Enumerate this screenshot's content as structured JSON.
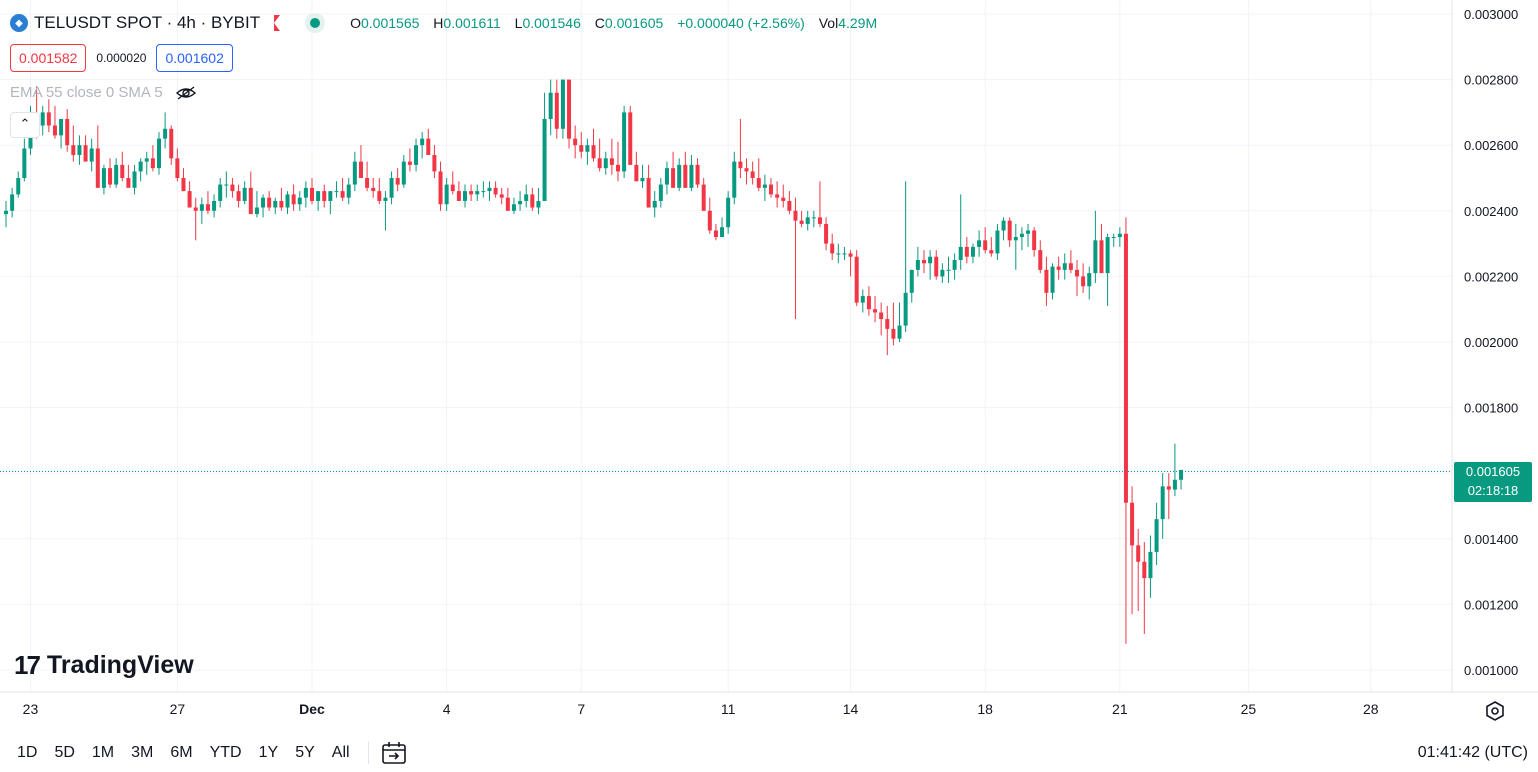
{
  "header": {
    "symbol_title": "TELUSDT SPOT · 4h · BYBIT",
    "ohlc": {
      "o_label": "O",
      "o_value": "0.001565",
      "h_label": "H",
      "h_value": "0.001611",
      "l_label": "L",
      "l_value": "0.001546",
      "c_label": "C",
      "c_value": "0.001605",
      "change": "+0.000040 (+2.56%)",
      "vol_label": "Vol",
      "vol_value": "4.29M"
    },
    "sell_price": "0.001582",
    "spread": "0.000020",
    "buy_price": "0.001602",
    "indicator_label": "EMA 55 close 0 SMA 5"
  },
  "brand": "TradingView",
  "last_price_tag": {
    "price": "0.001605",
    "countdown": "02:18:18"
  },
  "colors": {
    "up": "#089981",
    "down": "#f23645",
    "grid": "#f0f3fa"
  },
  "time_ranges": [
    "1D",
    "5D",
    "1M",
    "3M",
    "6M",
    "YTD",
    "1Y",
    "5Y",
    "All"
  ],
  "clock": "01:41:42 (UTC)",
  "chart_data": {
    "type": "candlestick",
    "ylim": [
      0.00095,
      0.00302
    ],
    "y_ticks": [
      "0.003000",
      "0.002800",
      "0.002600",
      "0.002400",
      "0.002200",
      "0.002000",
      "0.001800",
      "0.001600",
      "0.001400",
      "0.001200",
      "0.001000"
    ],
    "y_tick_values": [
      0.003,
      0.0028,
      0.0026,
      0.0024,
      0.0022,
      0.002,
      0.0018,
      0.0016,
      0.0014,
      0.0012,
      0.001
    ],
    "x_labels": [
      "23",
      "27",
      "Dec",
      "4",
      "7",
      "11",
      "14",
      "18",
      "21",
      "25",
      "28"
    ],
    "x_label_index": [
      4,
      28,
      50,
      72,
      94,
      118,
      138,
      160,
      182,
      203,
      223
    ],
    "last_price": 0.001605,
    "candles": [
      [
        0.00239,
        0.00243,
        0.00235,
        0.0024
      ],
      [
        0.0024,
        0.00247,
        0.00238,
        0.00245
      ],
      [
        0.00245,
        0.00252,
        0.00244,
        0.0025
      ],
      [
        0.0025,
        0.00262,
        0.00249,
        0.00259
      ],
      [
        0.00259,
        0.00272,
        0.00257,
        0.00268
      ],
      [
        0.00268,
        0.00278,
        0.00262,
        0.00266
      ],
      [
        0.00266,
        0.00272,
        0.00263,
        0.0027
      ],
      [
        0.0027,
        0.00274,
        0.00264,
        0.00266
      ],
      [
        0.00266,
        0.00272,
        0.00262,
        0.00263
      ],
      [
        0.00263,
        0.00268,
        0.00259,
        0.00268
      ],
      [
        0.00268,
        0.00271,
        0.00258,
        0.0026
      ],
      [
        0.0026,
        0.00266,
        0.00255,
        0.00257
      ],
      [
        0.00257,
        0.00263,
        0.00254,
        0.0026
      ],
      [
        0.0026,
        0.00263,
        0.00256,
        0.00255
      ],
      [
        0.00255,
        0.00262,
        0.00252,
        0.00259
      ],
      [
        0.00259,
        0.00266,
        0.00247,
        0.00247
      ],
      [
        0.00247,
        0.00254,
        0.00245,
        0.00253
      ],
      [
        0.00253,
        0.00256,
        0.00247,
        0.00248
      ],
      [
        0.00248,
        0.00256,
        0.00247,
        0.00254
      ],
      [
        0.00254,
        0.00258,
        0.00249,
        0.0025
      ],
      [
        0.0025,
        0.00254,
        0.00248,
        0.00247
      ],
      [
        0.00247,
        0.00254,
        0.00245,
        0.00252
      ],
      [
        0.00252,
        0.00256,
        0.00249,
        0.00255
      ],
      [
        0.00255,
        0.00258,
        0.00251,
        0.00256
      ],
      [
        0.00256,
        0.0026,
        0.00252,
        0.00253
      ],
      [
        0.00253,
        0.00264,
        0.00251,
        0.00262
      ],
      [
        0.00262,
        0.0027,
        0.00259,
        0.00265
      ],
      [
        0.00265,
        0.00266,
        0.00254,
        0.00256
      ],
      [
        0.00256,
        0.00259,
        0.00249,
        0.0025
      ],
      [
        0.0025,
        0.00253,
        0.00246,
        0.00246
      ],
      [
        0.00246,
        0.00249,
        0.00241,
        0.00241
      ],
      [
        0.00241,
        0.00244,
        0.00231,
        0.0024
      ],
      [
        0.0024,
        0.00244,
        0.00236,
        0.00242
      ],
      [
        0.00242,
        0.00246,
        0.00239,
        0.0024
      ],
      [
        0.0024,
        0.00245,
        0.00238,
        0.00243
      ],
      [
        0.00243,
        0.0025,
        0.00241,
        0.00248
      ],
      [
        0.00248,
        0.00252,
        0.00244,
        0.00248
      ],
      [
        0.00248,
        0.0025,
        0.00244,
        0.00246
      ],
      [
        0.00246,
        0.00248,
        0.00241,
        0.00243
      ],
      [
        0.00243,
        0.00249,
        0.00242,
        0.00247
      ],
      [
        0.00247,
        0.00252,
        0.00239,
        0.00239
      ],
      [
        0.00239,
        0.00246,
        0.00238,
        0.00241
      ],
      [
        0.00241,
        0.00245,
        0.00238,
        0.00244
      ],
      [
        0.00244,
        0.00246,
        0.0024,
        0.00241
      ],
      [
        0.00241,
        0.00244,
        0.00239,
        0.00243
      ],
      [
        0.00243,
        0.00247,
        0.0024,
        0.00241
      ],
      [
        0.00241,
        0.00246,
        0.00239,
        0.00245
      ],
      [
        0.00245,
        0.00248,
        0.0024,
        0.00242
      ],
      [
        0.00242,
        0.00246,
        0.0024,
        0.00244
      ],
      [
        0.00244,
        0.00249,
        0.00241,
        0.00247
      ],
      [
        0.00247,
        0.0025,
        0.00242,
        0.00243
      ],
      [
        0.00243,
        0.00246,
        0.0024,
        0.00246
      ],
      [
        0.00246,
        0.00248,
        0.00241,
        0.00243
      ],
      [
        0.00243,
        0.00246,
        0.00239,
        0.00246
      ],
      [
        0.00246,
        0.00249,
        0.00244,
        0.00246
      ],
      [
        0.00246,
        0.0025,
        0.00243,
        0.00244
      ],
      [
        0.00244,
        0.0025,
        0.00242,
        0.00248
      ],
      [
        0.00248,
        0.00258,
        0.00246,
        0.00255
      ],
      [
        0.00255,
        0.0026,
        0.0025,
        0.0025
      ],
      [
        0.0025,
        0.00255,
        0.00246,
        0.00247
      ],
      [
        0.00247,
        0.0025,
        0.00244,
        0.00246
      ],
      [
        0.00246,
        0.0025,
        0.00242,
        0.00243
      ],
      [
        0.00243,
        0.00246,
        0.00234,
        0.00244
      ],
      [
        0.00244,
        0.00252,
        0.00242,
        0.0025
      ],
      [
        0.0025,
        0.00253,
        0.00246,
        0.00248
      ],
      [
        0.00248,
        0.00257,
        0.00247,
        0.00255
      ],
      [
        0.00255,
        0.00259,
        0.00252,
        0.00254
      ],
      [
        0.00254,
        0.00262,
        0.00252,
        0.0026
      ],
      [
        0.0026,
        0.00264,
        0.00256,
        0.00262
      ],
      [
        0.00262,
        0.00265,
        0.00257,
        0.00257
      ],
      [
        0.00257,
        0.0026,
        0.0025,
        0.00252
      ],
      [
        0.00252,
        0.00255,
        0.0024,
        0.00242
      ],
      [
        0.00242,
        0.0025,
        0.0024,
        0.00248
      ],
      [
        0.00248,
        0.00252,
        0.00245,
        0.00246
      ],
      [
        0.00246,
        0.00249,
        0.00243,
        0.00243
      ],
      [
        0.00243,
        0.00248,
        0.00241,
        0.00246
      ],
      [
        0.00246,
        0.00248,
        0.00243,
        0.00245
      ],
      [
        0.00245,
        0.00248,
        0.00243,
        0.00246
      ],
      [
        0.00246,
        0.00249,
        0.00244,
        0.00246
      ],
      [
        0.00246,
        0.00249,
        0.00243,
        0.00247
      ],
      [
        0.00247,
        0.00249,
        0.00244,
        0.00245
      ],
      [
        0.00245,
        0.00247,
        0.00242,
        0.00244
      ],
      [
        0.00244,
        0.00247,
        0.0024,
        0.0024
      ],
      [
        0.0024,
        0.00244,
        0.00239,
        0.00242
      ],
      [
        0.00242,
        0.00246,
        0.0024,
        0.00243
      ],
      [
        0.00243,
        0.00248,
        0.00241,
        0.00245
      ],
      [
        0.00245,
        0.00247,
        0.0024,
        0.00241
      ],
      [
        0.00241,
        0.00247,
        0.00239,
        0.00243
      ],
      [
        0.00243,
        0.00276,
        0.00243,
        0.00268
      ],
      [
        0.00268,
        0.0028,
        0.00263,
        0.00276
      ],
      [
        0.00276,
        0.0028,
        0.00262,
        0.00265
      ],
      [
        0.00265,
        0.0028,
        0.00262,
        0.0028
      ],
      [
        0.0028,
        0.0028,
        0.00259,
        0.00262
      ],
      [
        0.00262,
        0.00266,
        0.00256,
        0.0026
      ],
      [
        0.0026,
        0.00264,
        0.00256,
        0.00258
      ],
      [
        0.00258,
        0.00262,
        0.00254,
        0.0026
      ],
      [
        0.0026,
        0.00265,
        0.00255,
        0.00256
      ],
      [
        0.00256,
        0.00262,
        0.00252,
        0.00253
      ],
      [
        0.00253,
        0.00258,
        0.00251,
        0.00256
      ],
      [
        0.00256,
        0.00262,
        0.00251,
        0.00254
      ],
      [
        0.00254,
        0.00261,
        0.00249,
        0.00252
      ],
      [
        0.00252,
        0.00272,
        0.0025,
        0.0027
      ],
      [
        0.0027,
        0.00272,
        0.00254,
        0.00254
      ],
      [
        0.00254,
        0.00258,
        0.00249,
        0.00249
      ],
      [
        0.00249,
        0.00254,
        0.00247,
        0.0025
      ],
      [
        0.0025,
        0.00254,
        0.00241,
        0.00241
      ],
      [
        0.00241,
        0.00246,
        0.00238,
        0.00243
      ],
      [
        0.00243,
        0.0025,
        0.00241,
        0.00248
      ],
      [
        0.00248,
        0.00255,
        0.00245,
        0.00253
      ],
      [
        0.00253,
        0.00258,
        0.00247,
        0.00247
      ],
      [
        0.00247,
        0.00256,
        0.00246,
        0.00254
      ],
      [
        0.00254,
        0.00258,
        0.00247,
        0.00247
      ],
      [
        0.00247,
        0.00257,
        0.00246,
        0.00254
      ],
      [
        0.00254,
        0.00256,
        0.00247,
        0.00248
      ],
      [
        0.00248,
        0.0025,
        0.0024,
        0.0024
      ],
      [
        0.0024,
        0.00244,
        0.00233,
        0.00234
      ],
      [
        0.00234,
        0.00236,
        0.00231,
        0.00232
      ],
      [
        0.00232,
        0.00238,
        0.00232,
        0.00235
      ],
      [
        0.00235,
        0.00246,
        0.00233,
        0.00244
      ],
      [
        0.00244,
        0.00258,
        0.00242,
        0.00255
      ],
      [
        0.00255,
        0.00268,
        0.0025,
        0.00253
      ],
      [
        0.00253,
        0.00256,
        0.00248,
        0.00252
      ],
      [
        0.00252,
        0.00255,
        0.00248,
        0.0025
      ],
      [
        0.0025,
        0.00256,
        0.00246,
        0.00247
      ],
      [
        0.00247,
        0.00251,
        0.00243,
        0.00248
      ],
      [
        0.00248,
        0.0025,
        0.00244,
        0.00245
      ],
      [
        0.00245,
        0.00249,
        0.00241,
        0.00244
      ],
      [
        0.00244,
        0.00248,
        0.00241,
        0.00243
      ],
      [
        0.00243,
        0.00246,
        0.00239,
        0.0024
      ],
      [
        0.0024,
        0.00244,
        0.00207,
        0.00237
      ],
      [
        0.00237,
        0.0024,
        0.00235,
        0.00236
      ],
      [
        0.00236,
        0.0024,
        0.00234,
        0.00238
      ],
      [
        0.00238,
        0.0024,
        0.00235,
        0.00238
      ],
      [
        0.00238,
        0.00249,
        0.00235,
        0.00236
      ],
      [
        0.00236,
        0.00238,
        0.00228,
        0.0023
      ],
      [
        0.0023,
        0.00233,
        0.00225,
        0.00227
      ],
      [
        0.00227,
        0.0023,
        0.00224,
        0.00227
      ],
      [
        0.00227,
        0.00229,
        0.00225,
        0.00227
      ],
      [
        0.00227,
        0.00228,
        0.0022,
        0.00226
      ],
      [
        0.00226,
        0.00228,
        0.00211,
        0.00212
      ],
      [
        0.00212,
        0.00216,
        0.00209,
        0.00214
      ],
      [
        0.00214,
        0.00217,
        0.00208,
        0.0021
      ],
      [
        0.0021,
        0.00214,
        0.00206,
        0.00209
      ],
      [
        0.00209,
        0.00212,
        0.00202,
        0.00207
      ],
      [
        0.00207,
        0.00211,
        0.00196,
        0.00204
      ],
      [
        0.00204,
        0.00212,
        0.00199,
        0.00201
      ],
      [
        0.00201,
        0.00212,
        0.002,
        0.00205
      ],
      [
        0.00205,
        0.00249,
        0.00203,
        0.00215
      ],
      [
        0.00215,
        0.00222,
        0.00212,
        0.00222
      ],
      [
        0.00222,
        0.00229,
        0.0022,
        0.00225
      ],
      [
        0.00225,
        0.00228,
        0.00221,
        0.00224
      ],
      [
        0.00224,
        0.00228,
        0.00219,
        0.00226
      ],
      [
        0.00226,
        0.00228,
        0.00219,
        0.0022
      ],
      [
        0.0022,
        0.00224,
        0.00218,
        0.00222
      ],
      [
        0.00222,
        0.00226,
        0.00218,
        0.00222
      ],
      [
        0.00222,
        0.00227,
        0.00219,
        0.00225
      ],
      [
        0.00225,
        0.00245,
        0.00222,
        0.00229
      ],
      [
        0.00229,
        0.00232,
        0.00224,
        0.00226
      ],
      [
        0.00226,
        0.0023,
        0.00224,
        0.00229
      ],
      [
        0.00229,
        0.00234,
        0.00226,
        0.00231
      ],
      [
        0.00231,
        0.00235,
        0.00227,
        0.00228
      ],
      [
        0.00228,
        0.00232,
        0.00226,
        0.00227
      ],
      [
        0.00227,
        0.00236,
        0.00225,
        0.00234
      ],
      [
        0.00234,
        0.00238,
        0.00231,
        0.00237
      ],
      [
        0.00237,
        0.00238,
        0.00229,
        0.00231
      ],
      [
        0.00231,
        0.00236,
        0.00222,
        0.00232
      ],
      [
        0.00232,
        0.00235,
        0.00228,
        0.00233
      ],
      [
        0.00233,
        0.00236,
        0.00229,
        0.00234
      ],
      [
        0.00234,
        0.00235,
        0.00226,
        0.00228
      ],
      [
        0.00228,
        0.00231,
        0.00221,
        0.00222
      ],
      [
        0.00222,
        0.00226,
        0.00211,
        0.00215
      ],
      [
        0.00215,
        0.00224,
        0.00213,
        0.00223
      ],
      [
        0.00223,
        0.00226,
        0.00219,
        0.00222
      ],
      [
        0.00222,
        0.00227,
        0.00219,
        0.00224
      ],
      [
        0.00224,
        0.00228,
        0.00221,
        0.00222
      ],
      [
        0.00222,
        0.00225,
        0.00214,
        0.0022
      ],
      [
        0.0022,
        0.00224,
        0.00215,
        0.00217
      ],
      [
        0.00217,
        0.00223,
        0.00213,
        0.00221
      ],
      [
        0.00221,
        0.0024,
        0.00218,
        0.00231
      ],
      [
        0.00231,
        0.00236,
        0.00221,
        0.00221
      ],
      [
        0.00221,
        0.00233,
        0.00211,
        0.00232
      ],
      [
        0.00232,
        0.00233,
        0.00229,
        0.00232
      ],
      [
        0.00232,
        0.00235,
        0.00229,
        0.00233
      ],
      [
        0.00233,
        0.00238,
        0.00108,
        0.00151
      ],
      [
        0.00151,
        0.00156,
        0.00117,
        0.00138
      ],
      [
        0.00138,
        0.00143,
        0.00118,
        0.00133
      ],
      [
        0.00133,
        0.00139,
        0.00111,
        0.00128
      ],
      [
        0.00128,
        0.00141,
        0.00122,
        0.00136
      ],
      [
        0.00136,
        0.00151,
        0.00132,
        0.00146
      ],
      [
        0.00146,
        0.0016,
        0.0014,
        0.00156
      ],
      [
        0.00156,
        0.0016,
        0.00146,
        0.00155
      ],
      [
        0.00155,
        0.00169,
        0.00153,
        0.00158
      ],
      [
        0.00158,
        0.00161,
        0.00155,
        0.00161
      ]
    ]
  }
}
